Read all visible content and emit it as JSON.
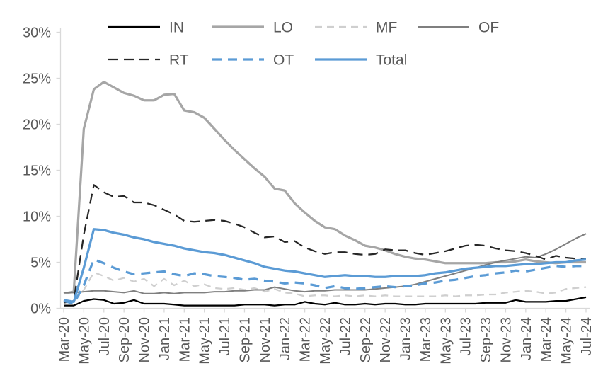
{
  "chart_data": {
    "type": "line",
    "title": "",
    "xlabel": "",
    "ylabel": "",
    "grid": "off",
    "legend_position": "top",
    "axis_color": "#d9d9d9",
    "label_color": "#595959",
    "y_axis": {
      "min": 0,
      "max": 30,
      "step": 5,
      "tick_labels": [
        "0%",
        "5%",
        "10%",
        "15%",
        "20%",
        "25%",
        "30%"
      ]
    },
    "x_tick_interval": 2,
    "x_categories": [
      "Mar-20",
      "Apr-20",
      "May-20",
      "Jun-20",
      "Jul-20",
      "Aug-20",
      "Sep-20",
      "Oct-20",
      "Nov-20",
      "Dec-20",
      "Jan-21",
      "Feb-21",
      "Mar-21",
      "Apr-21",
      "May-21",
      "Jun-21",
      "Jul-21",
      "Aug-21",
      "Sep-21",
      "Oct-21",
      "Nov-21",
      "Dec-21",
      "Jan-22",
      "Feb-22",
      "Mar-22",
      "Apr-22",
      "May-22",
      "Jun-22",
      "Jul-22",
      "Aug-22",
      "Sep-22",
      "Oct-22",
      "Nov-22",
      "Dec-22",
      "Jan-23",
      "Feb-23",
      "Mar-23",
      "Apr-23",
      "May-23",
      "Jun-23",
      "Jul-23",
      "Aug-23",
      "Sep-23",
      "Oct-23",
      "Nov-23",
      "Dec-23",
      "Jan-24",
      "Feb-24",
      "Mar-24",
      "Apr-24",
      "May-24",
      "Jun-24",
      "Jul-24"
    ],
    "legend_rows": [
      [
        "IN",
        "LO",
        "MF",
        "OF"
      ],
      [
        "RT",
        "OT",
        "Total"
      ]
    ],
    "series": [
      {
        "name": "IN",
        "color": "#000000",
        "style": "solid",
        "width": 2.25,
        "dash": "",
        "values": [
          0.3,
          0.3,
          0.8,
          1.0,
          0.9,
          0.5,
          0.6,
          0.9,
          0.5,
          0.5,
          0.5,
          0.4,
          0.3,
          0.3,
          0.3,
          0.3,
          0.3,
          0.3,
          0.4,
          0.4,
          0.4,
          0.3,
          0.4,
          0.4,
          0.7,
          0.5,
          0.4,
          0.6,
          0.4,
          0.4,
          0.5,
          0.4,
          0.5,
          0.5,
          0.4,
          0.4,
          0.5,
          0.5,
          0.5,
          0.5,
          0.5,
          0.5,
          0.6,
          0.6,
          0.6,
          0.9,
          0.7,
          0.7,
          0.7,
          0.8,
          0.8,
          1.0,
          1.2
        ]
      },
      {
        "name": "LO",
        "color": "#a6a6a6",
        "style": "solid",
        "width": 3.25,
        "dash": "",
        "values": [
          1.6,
          1.8,
          19.5,
          23.8,
          24.6,
          24.0,
          23.4,
          23.1,
          22.6,
          22.6,
          23.2,
          23.3,
          21.5,
          21.3,
          20.7,
          19.5,
          18.3,
          17.2,
          16.2,
          15.2,
          14.3,
          13.0,
          12.8,
          11.4,
          10.4,
          9.5,
          8.8,
          8.6,
          7.9,
          7.4,
          6.8,
          6.6,
          6.3,
          5.9,
          5.6,
          5.4,
          5.3,
          5.1,
          4.9,
          4.9,
          4.9,
          4.9,
          4.9,
          5.0,
          5.0,
          5.1,
          5.3,
          5.1,
          5.0,
          4.9,
          5.0,
          5.0,
          5.0
        ]
      },
      {
        "name": "MF",
        "color": "#cfcfcf",
        "style": "dashed",
        "width": 2.25,
        "dash": "10 7",
        "values": [
          0.9,
          0.7,
          2.0,
          3.9,
          3.5,
          3.0,
          3.3,
          2.9,
          3.2,
          2.4,
          3.2,
          2.5,
          3.0,
          2.4,
          2.6,
          2.2,
          2.1,
          2.2,
          2.0,
          2.2,
          1.8,
          2.1,
          1.7,
          1.6,
          1.3,
          1.4,
          1.4,
          1.3,
          1.4,
          1.3,
          1.4,
          1.3,
          1.4,
          1.3,
          1.3,
          1.3,
          1.3,
          1.3,
          1.4,
          1.3,
          1.4,
          1.4,
          1.5,
          1.5,
          1.7,
          1.8,
          1.9,
          1.8,
          1.6,
          1.7,
          2.1,
          2.2,
          2.3
        ]
      },
      {
        "name": "OF",
        "color": "#7f7f7f",
        "style": "solid",
        "width": 2,
        "dash": "",
        "values": [
          1.7,
          1.7,
          1.8,
          1.9,
          1.9,
          1.8,
          1.7,
          1.9,
          1.6,
          1.6,
          1.7,
          1.6,
          1.7,
          1.7,
          1.7,
          1.8,
          1.8,
          1.9,
          1.9,
          2.0,
          2.0,
          2.3,
          2.1,
          1.9,
          1.8,
          1.9,
          1.9,
          2.0,
          2.0,
          2.0,
          2.0,
          2.1,
          2.2,
          2.3,
          2.4,
          2.6,
          2.9,
          3.2,
          3.5,
          3.8,
          4.1,
          4.4,
          4.7,
          5.0,
          5.2,
          5.4,
          5.6,
          5.5,
          5.9,
          6.4,
          7.0,
          7.6,
          8.1
        ]
      },
      {
        "name": "RT",
        "color": "#262626",
        "style": "dashed",
        "width": 2.25,
        "dash": "14 8",
        "values": [
          0.6,
          0.8,
          8.0,
          13.4,
          12.6,
          12.1,
          12.2,
          11.5,
          11.5,
          11.2,
          10.7,
          10.2,
          9.5,
          9.4,
          9.5,
          9.6,
          9.5,
          9.2,
          8.8,
          8.2,
          7.7,
          7.8,
          7.2,
          7.3,
          6.6,
          6.2,
          5.9,
          6.1,
          6.1,
          5.9,
          5.8,
          5.9,
          6.4,
          6.3,
          6.3,
          6.0,
          5.8,
          6.0,
          6.2,
          6.5,
          6.8,
          6.9,
          6.8,
          6.5,
          6.3,
          6.2,
          6.0,
          5.7,
          5.3,
          5.7,
          5.5,
          5.4,
          5.4
        ]
      },
      {
        "name": "OT",
        "color": "#5b9bd5",
        "style": "dashed",
        "width": 3.25,
        "dash": "13 9",
        "values": [
          0.8,
          0.5,
          2.5,
          5.3,
          4.9,
          4.4,
          4.0,
          3.7,
          3.8,
          3.9,
          4.0,
          3.7,
          3.5,
          3.8,
          3.7,
          3.5,
          3.4,
          3.3,
          3.1,
          3.2,
          3.0,
          2.9,
          2.7,
          2.8,
          2.7,
          2.5,
          2.2,
          2.4,
          2.2,
          2.1,
          2.2,
          2.3,
          2.4,
          2.3,
          2.4,
          2.5,
          2.7,
          2.8,
          3.0,
          3.1,
          3.3,
          3.5,
          3.6,
          3.8,
          3.9,
          4.1,
          4.0,
          4.2,
          4.4,
          4.6,
          4.5,
          4.6,
          4.6
        ]
      },
      {
        "name": "Total",
        "color": "#5b9bd5",
        "style": "solid",
        "width": 3.25,
        "dash": "",
        "values": [
          0.9,
          0.7,
          4.4,
          8.6,
          8.5,
          8.2,
          8.0,
          7.7,
          7.5,
          7.2,
          7.0,
          6.8,
          6.5,
          6.3,
          6.1,
          6.0,
          5.8,
          5.5,
          5.2,
          4.9,
          4.5,
          4.3,
          4.1,
          4.0,
          3.8,
          3.6,
          3.4,
          3.5,
          3.6,
          3.5,
          3.5,
          3.4,
          3.4,
          3.5,
          3.5,
          3.5,
          3.6,
          3.8,
          3.9,
          4.1,
          4.3,
          4.4,
          4.5,
          4.6,
          4.6,
          4.7,
          4.8,
          4.8,
          4.9,
          5.0,
          5.0,
          5.2,
          5.3
        ]
      }
    ]
  }
}
